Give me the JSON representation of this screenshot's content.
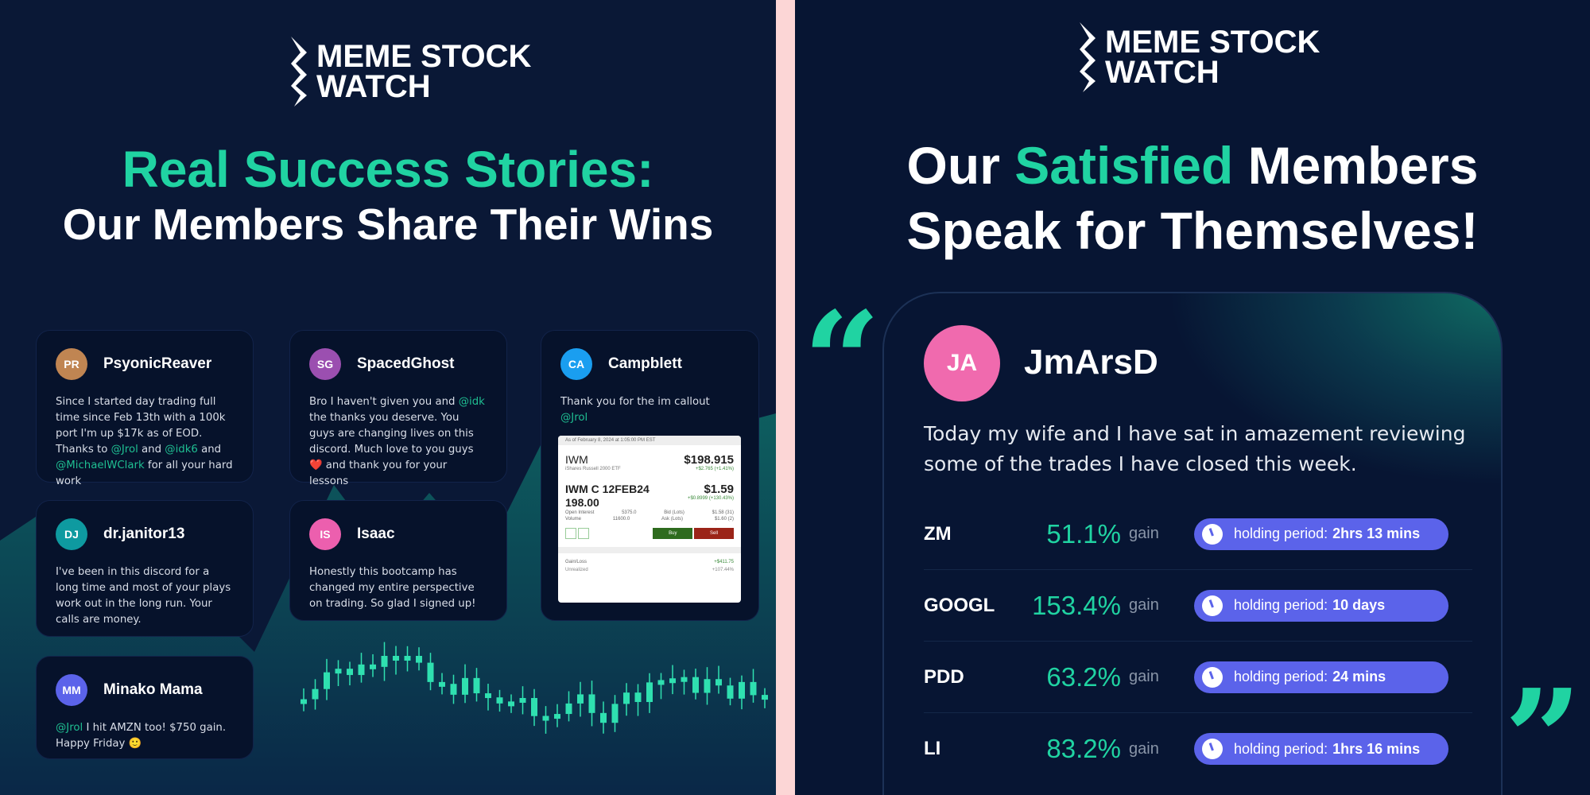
{
  "colors": {
    "accent": "#20d3a2",
    "background": "#0a1836",
    "pill": "#5b63ea",
    "divider": "#fcd6d6"
  },
  "left": {
    "logo": {
      "line1": "MEME STOCK",
      "line2": "WATCH"
    },
    "headline": {
      "line1": "Real Success Stories:",
      "line2": "Our Members Share Their Wins"
    },
    "testimonials": [
      {
        "initials": "PR",
        "name": "PsyonicReaver",
        "color": "#c08552",
        "parts": [
          "Since I started day trading full time since Feb 13th with a 100k port I'm up $17k as of EOD. Thanks to ",
          "@Jrol",
          " and ",
          "@idk6",
          " and ",
          "@MichaelWClark",
          " for all your hard work"
        ]
      },
      {
        "initials": "SG",
        "name": "SpacedGhost",
        "color": "#9b4fb0",
        "parts": [
          "Bro I haven't given you and ",
          "@idk",
          " the thanks you deserve. You guys are changing lives on this discord. Much love to you guys ",
          "❤️",
          " and thank you for your lessons"
        ]
      },
      {
        "initials": "CA",
        "name": "Campblett",
        "color": "#1a9ef0",
        "parts": [
          "Thank you for the im callout ",
          "@Jrol"
        ]
      },
      {
        "initials": "DJ",
        "name": "dr.janitor13",
        "color": "#0e9aa0",
        "parts": [
          "I've been in this discord for a long time and most of your plays work out in the long run. Your calls are money."
        ]
      },
      {
        "initials": "IS",
        "name": "Isaac",
        "color": "#ec5fae",
        "parts": [
          "Honestly this bootcamp has changed my entire perspective on trading. So glad I signed up!"
        ]
      },
      {
        "initials": "MM",
        "name": "Minako Mama",
        "color": "#5b63ea",
        "parts": [
          "@Jrol",
          " I hit AMZN too! $750 gain. Happy Friday ",
          "🙂"
        ]
      }
    ],
    "widget": {
      "timestamp": "As of February 8, 2024 at 1:05:00 PM EST",
      "symbol": "IWM",
      "symbol_name": "iShares Russell 2000 ETF",
      "price": "$198.915",
      "change": "+$2.765 (+1.41%)",
      "option": "IWM C 12FEB24",
      "strike": "198.00",
      "option_price": "$1.59",
      "option_change": "+$0.8999 (+130.43%)",
      "stats": [
        [
          "Open Interest",
          "5375.0",
          "Bid (Lots)",
          "$1.58 (31)"
        ],
        [
          "Volume",
          "11600.0",
          "Ask (Lots)",
          "$1.60 (2)"
        ]
      ],
      "buy": "Buy",
      "sell": "Sell",
      "gain_label": "Gain/Loss",
      "gain_value": "+$411.75",
      "unrealized_label": "Unrealized",
      "unrealized_value": "+107.44%"
    }
  },
  "right": {
    "logo": {
      "line1": "MEME STOCK",
      "line2": "WATCH"
    },
    "headline": {
      "line1_a": "Our ",
      "line1_b": "Satisfied",
      "line1_c": " Members",
      "line2": "Speak for Themselves!"
    },
    "testimonial": {
      "initials": "JA",
      "name": "JmArsD",
      "text": "Today my wife and I have sat in amazement reviewing some of the trades I have closed this week."
    },
    "gain_label": "gain",
    "holding_label": "holding period:",
    "trades": [
      {
        "ticker": "ZM",
        "gain": "51.1%",
        "holding": "2hrs 13 mins"
      },
      {
        "ticker": "GOOGL",
        "gain": "153.4%",
        "holding": "10 days"
      },
      {
        "ticker": "PDD",
        "gain": "63.2%",
        "holding": "24 mins"
      },
      {
        "ticker": "LI",
        "gain": "83.2%",
        "holding": "1hrs 16 mins"
      }
    ]
  }
}
